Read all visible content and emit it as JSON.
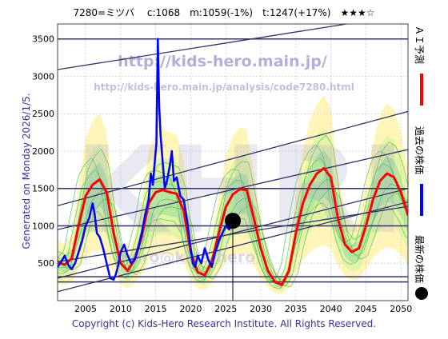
{
  "chart_data": {
    "type": "line",
    "title": "7280=ミツバ　 c:1068　m:1059(-1%)　t:1247(+17%)　★★★☆",
    "side_label": "Generated on Monday 2026/1/5.",
    "footer": "Copyright (c) Kids-Hero Research Institute. All Rights Reserved.",
    "watermarks": {
      "url_main": "http://kids-hero.main.jp/",
      "url_analysis": "http://kids-hero.main.jp/analysis/code7280.html",
      "brand": "KHRI",
      "mail": "hero@kids-hero"
    },
    "xlim": [
      2001,
      2051
    ],
    "ylim": [
      0,
      3700
    ],
    "xticks": [
      2005,
      2010,
      2015,
      2020,
      2025,
      2030,
      2035,
      2040,
      2045,
      2050
    ],
    "yticks": [
      500,
      1000,
      1500,
      2000,
      2500,
      3000,
      3500
    ],
    "grid": true,
    "legend_position": "right",
    "legend": [
      {
        "label": "ＡＩ予測",
        "color": "#ff0000"
      },
      {
        "label": "過去の株価",
        "color": "#0000ff"
      },
      {
        "label": "最新の株価",
        "color": "#000000"
      }
    ],
    "current_marker": {
      "x": 2026.0,
      "y": 1068
    },
    "horizontal_levels": [
      250,
      320,
      1000,
      1500,
      3500
    ],
    "trend_lines": [
      {
        "x": [
          2001,
          2051
        ],
        "y": [
          950,
          2020
        ]
      },
      {
        "x": [
          2001,
          2051
        ],
        "y": [
          1270,
          2530
        ]
      },
      {
        "x": [
          2001,
          2051
        ],
        "y": [
          3090,
          3830
        ]
      },
      {
        "x": [
          2001,
          2051
        ],
        "y": [
          300,
          1500
        ]
      },
      {
        "x": [
          2001,
          2051
        ],
        "y": [
          120,
          1320
        ]
      },
      {
        "x": [
          2001,
          2051
        ],
        "y": [
          520,
          1260
        ]
      }
    ],
    "series": [
      {
        "name": "過去の株価",
        "color": "#0000ff",
        "x": [
          2001.0,
          2001.5,
          2002.0,
          2002.5,
          2003.0,
          2003.5,
          2004.0,
          2004.5,
          2005.0,
          2005.5,
          2006.0,
          2006.3,
          2006.6,
          2007.0,
          2007.5,
          2008.0,
          2008.5,
          2009.0,
          2009.3,
          2009.6,
          2010.0,
          2010.5,
          2011.0,
          2011.5,
          2012.0,
          2012.5,
          2013.0,
          2013.5,
          2014.0,
          2014.3,
          2014.6,
          2014.9,
          2015.1,
          2015.3,
          2015.5,
          2015.7,
          2016.0,
          2016.3,
          2016.6,
          2017.0,
          2017.3,
          2017.6,
          2018.0,
          2018.5,
          2019.0,
          2019.5,
          2020.0,
          2020.3,
          2020.6,
          2021.0,
          2021.5,
          2022.0,
          2022.5,
          2023.0,
          2023.5,
          2024.0,
          2024.5,
          2025.0,
          2025.5,
          2026.0
        ],
        "values": [
          450,
          520,
          600,
          480,
          420,
          500,
          650,
          800,
          1000,
          1100,
          1300,
          1150,
          900,
          850,
          700,
          500,
          300,
          280,
          350,
          450,
          650,
          750,
          600,
          500,
          550,
          700,
          900,
          1150,
          1350,
          1700,
          1550,
          1900,
          2100,
          3500,
          2600,
          2200,
          1850,
          1500,
          1600,
          1800,
          2000,
          1600,
          1650,
          1400,
          1350,
          1050,
          700,
          500,
          450,
          600,
          500,
          700,
          550,
          450,
          650,
          800,
          900,
          1000,
          950,
          1068
        ]
      },
      {
        "name": "ＡＩ予測",
        "color": "#ff0000",
        "x": [
          2001.0,
          2002.0,
          2003.0,
          2004.0,
          2005.0,
          2006.0,
          2007.0,
          2008.0,
          2009.0,
          2010.0,
          2011.0,
          2012.0,
          2013.0,
          2014.0,
          2015.0,
          2016.0,
          2017.0,
          2018.0,
          2019.0,
          2020.0,
          2021.0,
          2022.0,
          2023.0,
          2024.0,
          2025.0,
          2026.0,
          2027.0,
          2028.0,
          2029.0,
          2030.0,
          2031.0,
          2032.0,
          2033.0,
          2034.0,
          2035.0,
          2036.0,
          2037.0,
          2038.0,
          2039.0,
          2040.0,
          2041.0,
          2042.0,
          2043.0,
          2044.0,
          2045.0,
          2046.0,
          2047.0,
          2048.0,
          2049.0,
          2050.0,
          2051.0
        ],
        "values": [
          520,
          480,
          560,
          1000,
          1400,
          1550,
          1620,
          1450,
          900,
          500,
          400,
          550,
          850,
          1300,
          1450,
          1480,
          1450,
          1430,
          1200,
          650,
          380,
          340,
          520,
          900,
          1250,
          1420,
          1490,
          1480,
          1100,
          700,
          400,
          250,
          210,
          400,
          900,
          1300,
          1550,
          1700,
          1770,
          1650,
          1100,
          750,
          650,
          700,
          1000,
          1350,
          1600,
          1700,
          1650,
          1450,
          1140
        ]
      }
    ]
  }
}
